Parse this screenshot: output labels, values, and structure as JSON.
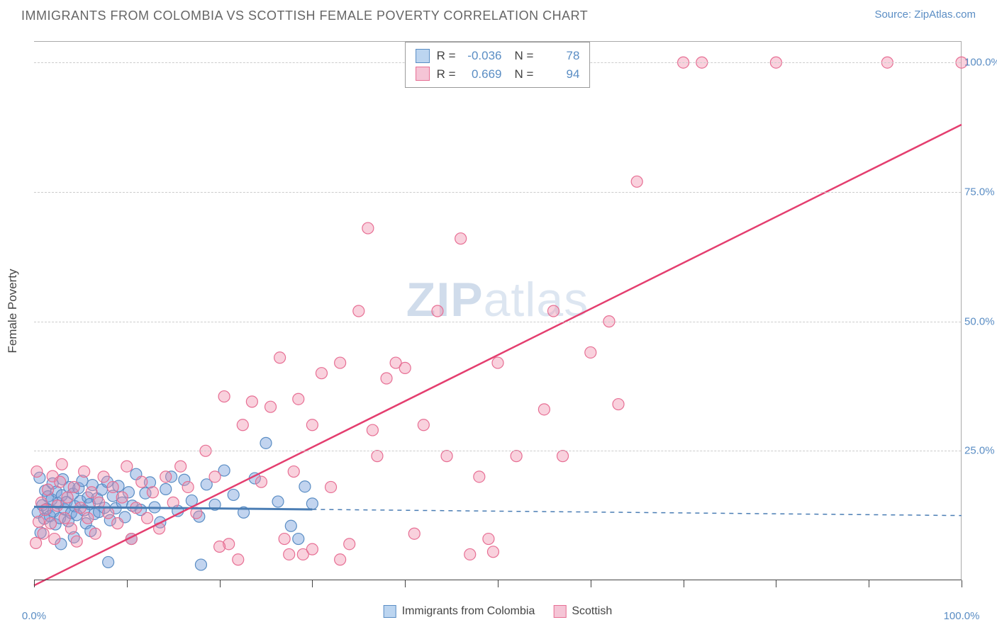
{
  "title": "IMMIGRANTS FROM COLOMBIA VS SCOTTISH FEMALE POVERTY CORRELATION CHART",
  "source": "Source: ZipAtlas.com",
  "y_axis_label": "Female Poverty",
  "watermark_a": "ZIP",
  "watermark_b": "atlas",
  "chart": {
    "type": "scatter",
    "xlim": [
      0,
      100
    ],
    "ylim": [
      0,
      104
    ],
    "x_ticks": [
      0,
      10,
      20,
      30,
      40,
      50,
      60,
      70,
      80,
      90,
      100
    ],
    "x_tick_labels": {
      "0": "0.0%",
      "100": "100.0%"
    },
    "y_grid": [
      25,
      50,
      75,
      100
    ],
    "y_tick_labels": {
      "25": "25.0%",
      "50": "50.0%",
      "75": "75.0%",
      "100": "100.0%"
    },
    "background_color": "#ffffff",
    "grid_color": "#cccccc"
  },
  "series": [
    {
      "key": "colombia",
      "label": "Immigrants from Colombia",
      "color_fill": "rgba(120,160,220,0.45)",
      "color_stroke": "#5a8dc4",
      "swatch_fill": "#bcd5f0",
      "swatch_border": "#5a8dc4",
      "R_label": "R =",
      "R": "-0.036",
      "N_label": "N =",
      "N": "78",
      "marker_radius": 8,
      "trend": {
        "x1": 0,
        "y1": 14.2,
        "x2": 100,
        "y2": 12.5,
        "solid_until": 30,
        "color": "#4a7db4",
        "width": 3
      },
      "points": [
        [
          0.4,
          13.1
        ],
        [
          0.6,
          19.8
        ],
        [
          0.9,
          14.5
        ],
        [
          1.1,
          11.9
        ],
        [
          1.2,
          17.3
        ],
        [
          1.4,
          13.8
        ],
        [
          1.5,
          16.2
        ],
        [
          1.7,
          12.4
        ],
        [
          1.9,
          15.6
        ],
        [
          2.0,
          18.7
        ],
        [
          2.1,
          13.3
        ],
        [
          2.3,
          10.8
        ],
        [
          2.4,
          17.1
        ],
        [
          2.6,
          14.9
        ],
        [
          2.8,
          12.0
        ],
        [
          3.0,
          16.4
        ],
        [
          3.1,
          19.5
        ],
        [
          3.3,
          13.7
        ],
        [
          3.5,
          15.1
        ],
        [
          3.7,
          11.4
        ],
        [
          3.8,
          18.0
        ],
        [
          4.0,
          13.0
        ],
        [
          4.2,
          16.7
        ],
        [
          4.4,
          14.3
        ],
        [
          4.6,
          12.6
        ],
        [
          4.8,
          17.8
        ],
        [
          5.0,
          15.3
        ],
        [
          5.2,
          19.2
        ],
        [
          5.4,
          13.5
        ],
        [
          5.6,
          11.0
        ],
        [
          5.8,
          16.0
        ],
        [
          6.0,
          14.7
        ],
        [
          6.3,
          18.4
        ],
        [
          6.5,
          12.8
        ],
        [
          6.8,
          15.8
        ],
        [
          7.0,
          13.2
        ],
        [
          7.3,
          17.5
        ],
        [
          7.6,
          14.0
        ],
        [
          7.9,
          19.0
        ],
        [
          8.2,
          11.6
        ],
        [
          8.5,
          16.3
        ],
        [
          8.8,
          13.9
        ],
        [
          9.1,
          18.2
        ],
        [
          9.5,
          15.0
        ],
        [
          9.8,
          12.2
        ],
        [
          10.2,
          17.0
        ],
        [
          10.6,
          14.4
        ],
        [
          11.0,
          20.5
        ],
        [
          11.5,
          13.6
        ],
        [
          12.0,
          16.8
        ],
        [
          12.5,
          18.9
        ],
        [
          13.0,
          14.1
        ],
        [
          13.6,
          11.2
        ],
        [
          14.2,
          17.6
        ],
        [
          14.8,
          20.0
        ],
        [
          15.5,
          13.4
        ],
        [
          16.2,
          19.4
        ],
        [
          17.0,
          15.4
        ],
        [
          17.8,
          12.3
        ],
        [
          18.6,
          18.5
        ],
        [
          19.5,
          14.6
        ],
        [
          20.5,
          21.2
        ],
        [
          21.5,
          16.5
        ],
        [
          22.6,
          13.1
        ],
        [
          23.8,
          19.7
        ],
        [
          25.0,
          26.5
        ],
        [
          26.3,
          15.2
        ],
        [
          27.7,
          10.5
        ],
        [
          29.2,
          18.1
        ],
        [
          30.0,
          14.8
        ],
        [
          2.9,
          7.0
        ],
        [
          8.0,
          3.5
        ],
        [
          10.5,
          8.0
        ],
        [
          0.7,
          9.2
        ],
        [
          4.3,
          8.3
        ],
        [
          6.1,
          9.5
        ],
        [
          18.0,
          3.0
        ],
        [
          28.5,
          8.0
        ]
      ]
    },
    {
      "key": "scottish",
      "label": "Scottish",
      "color_fill": "rgba(240,140,170,0.40)",
      "color_stroke": "#e76f94",
      "swatch_fill": "#f5c5d6",
      "swatch_border": "#e76f94",
      "R_label": "R =",
      "R": "0.669",
      "N_label": "N =",
      "N": "94",
      "marker_radius": 8,
      "trend": {
        "x1": 0,
        "y1": -1.0,
        "x2": 100,
        "y2": 88.0,
        "color": "#e43e6f",
        "width": 2.5
      },
      "points": [
        [
          0.2,
          7.2
        ],
        [
          0.5,
          11.3
        ],
        [
          0.8,
          15.0
        ],
        [
          1.0,
          9.0
        ],
        [
          1.2,
          13.6
        ],
        [
          1.5,
          17.5
        ],
        [
          1.8,
          11.0
        ],
        [
          2.0,
          20.1
        ],
        [
          2.2,
          8.0
        ],
        [
          2.5,
          14.4
        ],
        [
          2.8,
          19.0
        ],
        [
          3.0,
          22.4
        ],
        [
          3.3,
          12.0
        ],
        [
          3.6,
          16.0
        ],
        [
          4.0,
          10.0
        ],
        [
          4.3,
          18.0
        ],
        [
          4.6,
          7.5
        ],
        [
          5.0,
          14.0
        ],
        [
          5.4,
          21.0
        ],
        [
          5.8,
          12.0
        ],
        [
          6.2,
          17.0
        ],
        [
          6.6,
          9.0
        ],
        [
          7.0,
          15.0
        ],
        [
          7.5,
          20.0
        ],
        [
          8.0,
          13.0
        ],
        [
          8.5,
          18.0
        ],
        [
          9.0,
          11.0
        ],
        [
          9.5,
          16.0
        ],
        [
          10.0,
          22.0
        ],
        [
          10.5,
          8.0
        ],
        [
          11.0,
          14.0
        ],
        [
          11.6,
          19.0
        ],
        [
          12.2,
          12.0
        ],
        [
          12.8,
          17.0
        ],
        [
          13.5,
          10.0
        ],
        [
          14.2,
          20.0
        ],
        [
          15.0,
          15.0
        ],
        [
          15.8,
          22.0
        ],
        [
          16.6,
          18.0
        ],
        [
          17.5,
          13.0
        ],
        [
          18.5,
          25.0
        ],
        [
          19.5,
          20.0
        ],
        [
          20.5,
          35.5
        ],
        [
          21.0,
          7.0
        ],
        [
          22.0,
          4.0
        ],
        [
          22.5,
          30.0
        ],
        [
          23.5,
          34.5
        ],
        [
          24.5,
          19.0
        ],
        [
          25.5,
          33.5
        ],
        [
          26.5,
          43.0
        ],
        [
          27.0,
          8.0
        ],
        [
          28.0,
          21.0
        ],
        [
          28.5,
          35.0
        ],
        [
          29.0,
          5.0
        ],
        [
          30.0,
          30.0
        ],
        [
          31.0,
          40.0
        ],
        [
          32.0,
          18.0
        ],
        [
          33.0,
          42.0
        ],
        [
          34.0,
          7.0
        ],
        [
          35.0,
          52.0
        ],
        [
          36.0,
          68.0
        ],
        [
          37.0,
          24.0
        ],
        [
          38.0,
          39.0
        ],
        [
          39.0,
          42.0
        ],
        [
          40.0,
          41.0
        ],
        [
          41.0,
          9.0
        ],
        [
          42.0,
          30.0
        ],
        [
          43.5,
          52.0
        ],
        [
          44.5,
          24.0
        ],
        [
          46.0,
          66.0
        ],
        [
          48.0,
          20.0
        ],
        [
          49.0,
          8.0
        ],
        [
          50.0,
          42.0
        ],
        [
          52.0,
          24.0
        ],
        [
          55.0,
          33.0
        ],
        [
          56.0,
          52.0
        ],
        [
          57.0,
          24.0
        ],
        [
          60.0,
          44.0
        ],
        [
          62.0,
          50.0
        ],
        [
          63.0,
          34.0
        ],
        [
          65.0,
          77.0
        ],
        [
          70.0,
          100.0
        ],
        [
          72.0,
          100.0
        ],
        [
          80.0,
          100.0
        ],
        [
          92.0,
          100.0
        ],
        [
          100.0,
          100.0
        ],
        [
          0.3,
          21.0
        ],
        [
          47.0,
          5.0
        ],
        [
          49.5,
          5.5
        ],
        [
          33.0,
          4.0
        ],
        [
          30.0,
          6.0
        ],
        [
          27.5,
          5.0
        ],
        [
          36.5,
          29.0
        ],
        [
          20.0,
          6.5
        ]
      ]
    }
  ],
  "bottom_legend": [
    {
      "label_key": "series.0.label",
      "fill": "#bcd5f0",
      "border": "#5a8dc4",
      "name": "legend-colombia"
    },
    {
      "label_key": "series.1.label",
      "fill": "#f5c5d6",
      "border": "#e76f94",
      "name": "legend-scottish"
    }
  ]
}
